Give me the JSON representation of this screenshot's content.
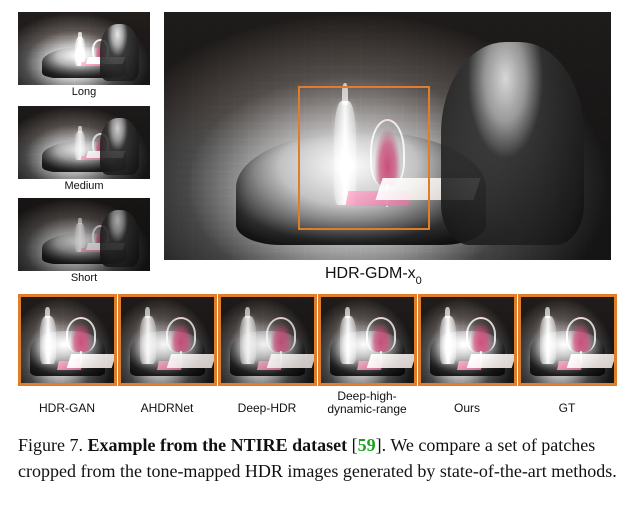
{
  "figure": {
    "left_labels": [
      "Long",
      "Medium",
      "Short"
    ],
    "main_label": "HDR-GDM-x",
    "main_label_sub": "0",
    "patch_labels": [
      "HDR-GAN",
      "AHDRNet",
      "Deep-HDR",
      "Deep-high-\ndynamic-range",
      "Ours",
      "GT"
    ],
    "caption_prefix": "Figure 7. ",
    "caption_bold": "Example from the NTIRE dataset",
    "caption_cite": "59",
    "caption_text": " We compare a set of patches cropped from the tone-mapped HDR images generated by state-of-the-art methods.",
    "colors": {
      "highlight": "#e07d2b",
      "citation": "#1aa321"
    }
  }
}
